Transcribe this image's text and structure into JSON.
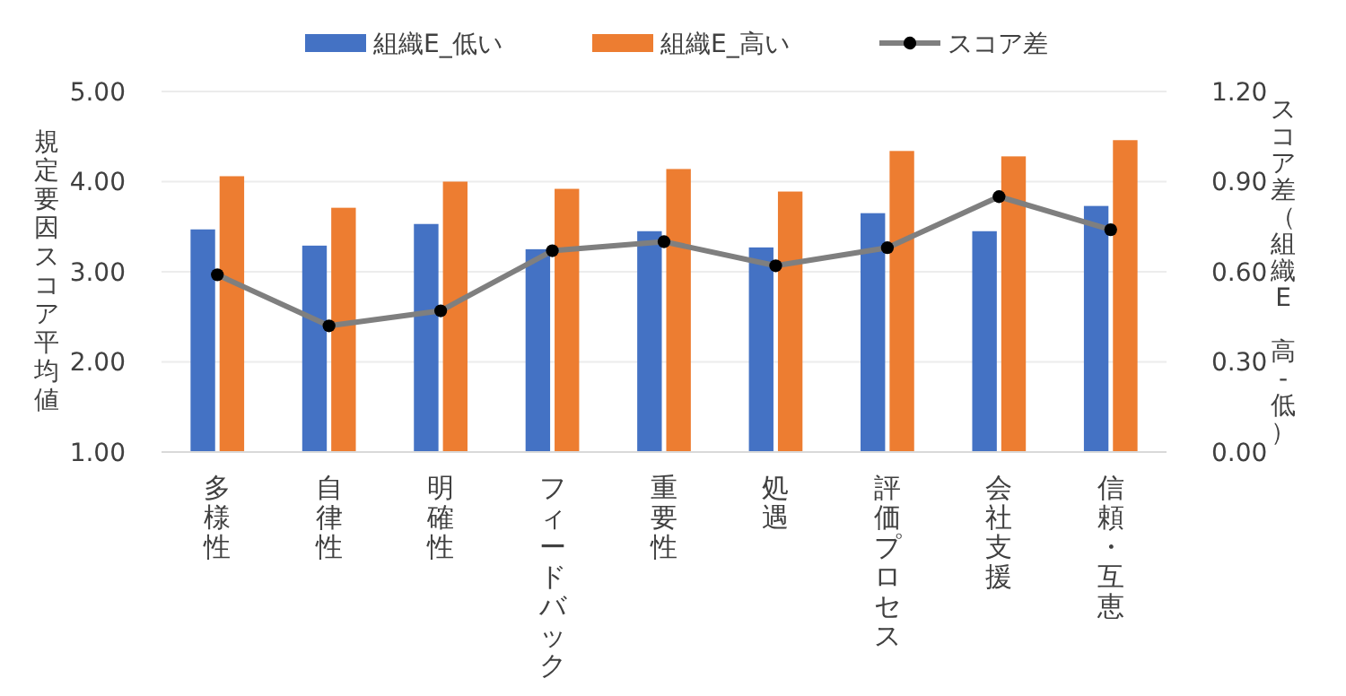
{
  "chart_data": {
    "type": "bar",
    "ylabel": "規定要因スコア平均値",
    "y2label": "スコア差（組織E 高-低）",
    "categories": [
      "多様性",
      "自律性",
      "明確性",
      "フィードバック",
      "重要性",
      "処遇",
      "評価プロセス",
      "会社支援",
      "信頼・互恵"
    ],
    "series": [
      {
        "name": "組織E_低い",
        "color": "#4472c4",
        "values": [
          3.47,
          3.29,
          3.53,
          3.25,
          3.45,
          3.27,
          3.65,
          3.45,
          3.73
        ]
      },
      {
        "name": "組織E_高い",
        "color": "#ed7d31",
        "values": [
          4.06,
          3.71,
          4.0,
          3.92,
          4.14,
          3.89,
          4.34,
          4.28,
          4.46
        ]
      },
      {
        "name": "スコア差",
        "type": "line",
        "axis": "y2",
        "color": "#7f7f7f",
        "marker": "circle",
        "values": [
          0.59,
          0.42,
          0.47,
          0.67,
          0.7,
          0.62,
          0.68,
          0.85,
          0.74
        ]
      }
    ],
    "ylim": [
      1,
      5
    ],
    "yticks": [
      {
        "value": 1,
        "label": "1.00"
      },
      {
        "value": 2,
        "label": "2.00"
      },
      {
        "value": 3,
        "label": "3.00"
      },
      {
        "value": 4,
        "label": "4.00"
      },
      {
        "value": 5,
        "label": "5.00"
      }
    ],
    "y2lim": [
      0,
      1.2
    ],
    "y2ticks": [
      {
        "value": 0,
        "label": "0.00"
      },
      {
        "value": 0.3,
        "label": "0.30"
      },
      {
        "value": 0.6,
        "label": "0.60"
      },
      {
        "value": 0.9,
        "label": "0.90"
      },
      {
        "value": 1.2,
        "label": "1.20"
      }
    ],
    "grid": "y",
    "legend": "top"
  }
}
